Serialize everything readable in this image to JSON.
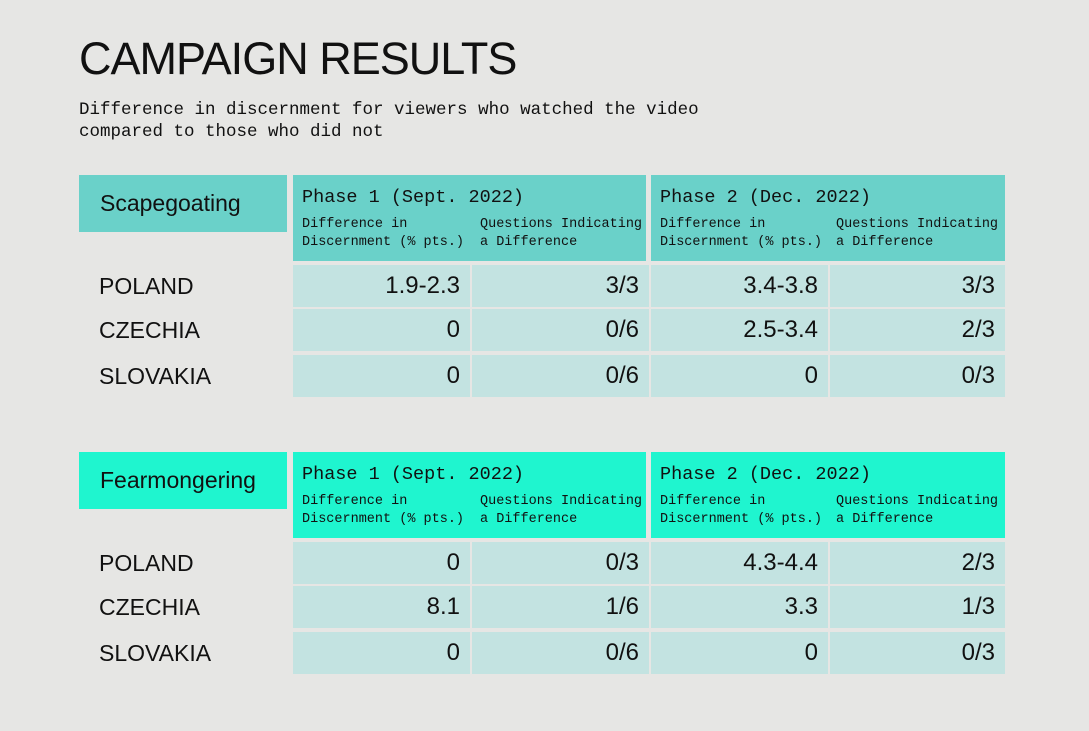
{
  "title": "CAMPAIGN RESULTS",
  "subtitle": "Difference in discernment for viewers who watched the video\ncompared to those who did not",
  "colors": {
    "scapegoating": "#6ad1c9",
    "fearmongering": "#1ff5cf",
    "cell": "#c3e3e1",
    "background": "#e6e6e4"
  },
  "sections": [
    {
      "label": "Scapegoating",
      "phases": [
        {
          "title": "Phase 1 (Sept. 2022)",
          "col1": "Difference in\nDiscernment (% pts.)",
          "col2": "Questions Indicating\na Difference"
        },
        {
          "title": "Phase 2 (Dec. 2022)",
          "col1": "Difference in\nDiscernment (% pts.)",
          "col2": "Questions Indicating\na Difference"
        }
      ],
      "rows": [
        {
          "country": "POLAND",
          "values": [
            "1.9-2.3",
            "3/3",
            "3.4-3.8",
            "3/3"
          ]
        },
        {
          "country": "CZECHIA",
          "values": [
            "0",
            "0/6",
            "2.5-3.4",
            "2/3"
          ]
        },
        {
          "country": "SLOVAKIA",
          "values": [
            "0",
            "0/6",
            "0",
            "0/3"
          ]
        }
      ]
    },
    {
      "label": "Fearmongering",
      "phases": [
        {
          "title": "Phase 1 (Sept. 2022)",
          "col1": "Difference in\nDiscernment (% pts.)",
          "col2": "Questions Indicating\na Difference"
        },
        {
          "title": "Phase 2 (Dec. 2022)",
          "col1": "Difference in\nDiscernment (% pts.)",
          "col2": "Questions Indicating\na Difference"
        }
      ],
      "rows": [
        {
          "country": "POLAND",
          "values": [
            "0",
            "0/3",
            "4.3-4.4",
            "2/3"
          ]
        },
        {
          "country": "CZECHIA",
          "values": [
            "8.1",
            "1/6",
            "3.3",
            "1/3"
          ]
        },
        {
          "country": "SLOVAKIA",
          "values": [
            "0",
            "0/6",
            "0",
            "0/3"
          ]
        }
      ]
    }
  ]
}
